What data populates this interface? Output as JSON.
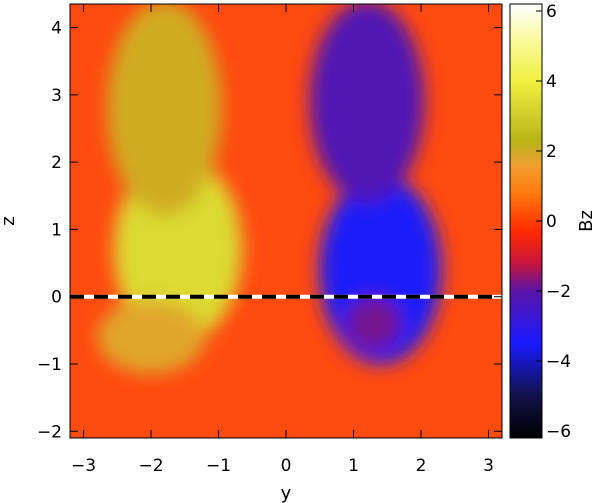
{
  "chart_data": {
    "type": "heatmap",
    "title": "",
    "xlabel": "y",
    "ylabel": "z",
    "xlim": [
      -3.2,
      3.2
    ],
    "ylim": [
      -2.1,
      4.35
    ],
    "x_ticks": [
      {
        "value": -3,
        "label": "−3"
      },
      {
        "value": -2,
        "label": "−2"
      },
      {
        "value": -1,
        "label": "−1"
      },
      {
        "value": 0,
        "label": "0"
      },
      {
        "value": 1,
        "label": "1"
      },
      {
        "value": 2,
        "label": "2"
      },
      {
        "value": 3,
        "label": "3"
      }
    ],
    "y_ticks": [
      {
        "value": -2,
        "label": "−2"
      },
      {
        "value": -1,
        "label": "−1"
      },
      {
        "value": 0,
        "label": "0"
      },
      {
        "value": 1,
        "label": "1"
      },
      {
        "value": 2,
        "label": "2"
      },
      {
        "value": 3,
        "label": "3"
      },
      {
        "value": 4,
        "label": "4"
      }
    ],
    "colorbar": {
      "label": "Bz",
      "range": [
        -6.2,
        6.2
      ],
      "ticks": [
        {
          "value": 6,
          "label": "6"
        },
        {
          "value": 4,
          "label": "4"
        },
        {
          "value": 2,
          "label": "2"
        },
        {
          "value": 0,
          "label": "0"
        },
        {
          "value": -2,
          "label": "−2"
        },
        {
          "value": -4,
          "label": "−4"
        },
        {
          "value": -6,
          "label": "−6"
        }
      ],
      "colors": [
        {
          "value": -6.2,
          "color": "#000000"
        },
        {
          "value": -5.0,
          "color": "#12124a"
        },
        {
          "value": -3.5,
          "color": "#1a1aff"
        },
        {
          "value": -2.0,
          "color": "#5a14a8"
        },
        {
          "value": -1.2,
          "color": "#c8143c"
        },
        {
          "value": -0.3,
          "color": "#ff2a00"
        },
        {
          "value": 0.8,
          "color": "#ff7a10"
        },
        {
          "value": 1.6,
          "color": "#f0a030"
        },
        {
          "value": 2.3,
          "color": "#b8b418"
        },
        {
          "value": 4.0,
          "color": "#f0f040"
        },
        {
          "value": 5.2,
          "color": "#fafaa0"
        },
        {
          "value": 6.2,
          "color": "#ffffff"
        }
      ]
    },
    "field_regions": [
      {
        "y": -1.6,
        "z": 0.7,
        "sy": 0.95,
        "sz": 1.4,
        "value": 3.4
      },
      {
        "y": -1.8,
        "z": 2.8,
        "sy": 0.85,
        "sz": 1.6,
        "value": 2.0
      },
      {
        "y": -2.0,
        "z": -0.6,
        "sy": 0.8,
        "sz": 0.55,
        "value": 1.8
      },
      {
        "y": 1.4,
        "z": 0.4,
        "sy": 0.9,
        "sz": 1.4,
        "value": -3.4
      },
      {
        "y": 1.3,
        "z": -0.4,
        "sy": 0.4,
        "sz": 0.4,
        "value": -1.8
      },
      {
        "y": 1.2,
        "z": 2.9,
        "sy": 0.85,
        "sz": 1.5,
        "value": -2.2
      }
    ],
    "reference_line": {
      "z": 0,
      "style": "dashed"
    },
    "grid": false
  }
}
